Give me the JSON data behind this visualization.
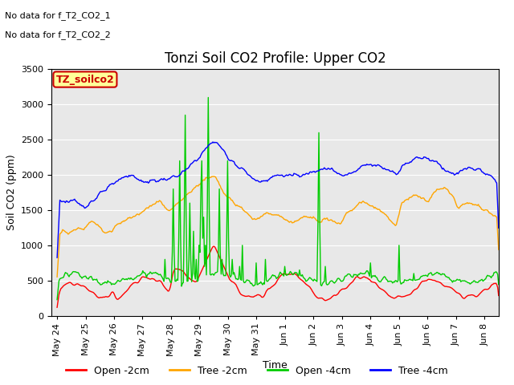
{
  "title": "Tonzi Soil CO2 Profile: Upper CO2",
  "xlabel": "Time",
  "ylabel": "Soil CO2 (ppm)",
  "ylim": [
    0,
    3500
  ],
  "yticks": [
    0,
    500,
    1000,
    1500,
    2000,
    2500,
    3000,
    3500
  ],
  "legend_labels": [
    "Open -2cm",
    "Tree -2cm",
    "Open -4cm",
    "Tree -4cm"
  ],
  "legend_colors": [
    "#ff0000",
    "#ffa500",
    "#00cc00",
    "#0000ff"
  ],
  "annotation_lines": [
    "No data for f_T2_CO2_1",
    "No data for f_T2_CO2_2"
  ],
  "annotation_box_label": "TZ_soilco2",
  "annotation_box_color": "#ffff99",
  "annotation_box_text_color": "#cc0000",
  "background_color": "#ffffff",
  "plot_bg_color": "#e8e8e8",
  "grid_color": "#ffffff",
  "title_fontsize": 12,
  "axis_fontsize": 9,
  "tick_fontsize": 8,
  "line_width": 1.0,
  "x_tick_labels": [
    "May 24",
    "May 25",
    "May 26",
    "May 27",
    "May 28",
    "May 29",
    "May 30",
    "May 31",
    "Jun 1",
    "Jun 2",
    "Jun 3",
    "Jun 4",
    "Jun 5",
    "Jun 6",
    "Jun 7",
    "Jun 8"
  ],
  "x_tick_positions": [
    0,
    1,
    2,
    3,
    4,
    5,
    6,
    7,
    8,
    9,
    10,
    11,
    12,
    13,
    14,
    15
  ]
}
